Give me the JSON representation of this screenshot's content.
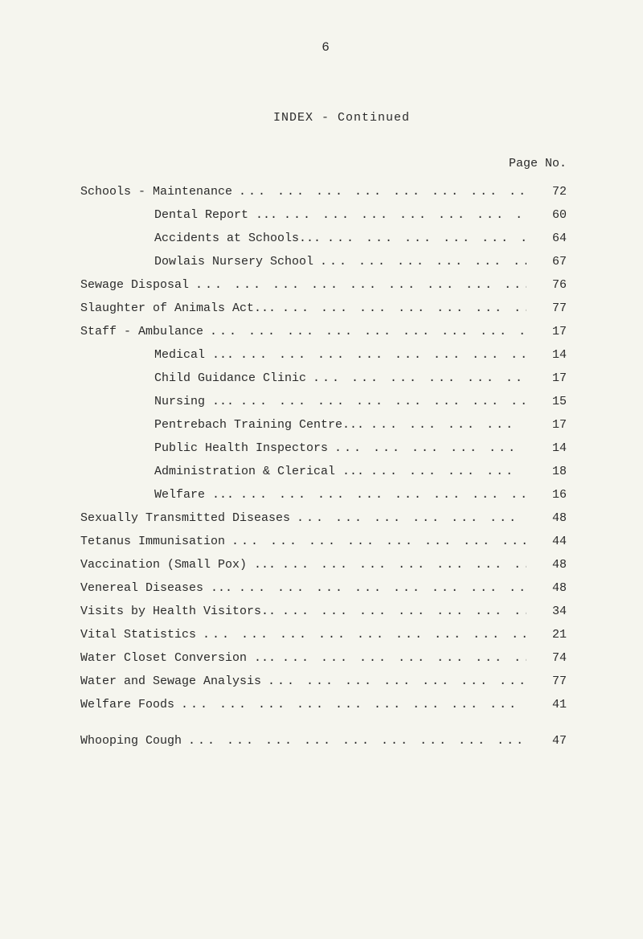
{
  "page_number_top": "6",
  "index_title": "INDEX - Continued",
  "header_label": "Page No.",
  "background_color": "#f5f5ee",
  "text_color": "#2a2a2a",
  "font_family": "Courier New",
  "entries": [
    {
      "label": "Schools - Maintenance",
      "page": "72",
      "indent": 0
    },
    {
      "label": "Dental Report ...",
      "page": "60",
      "indent": 1
    },
    {
      "label": "Accidents at Schools...",
      "page": "64",
      "indent": 1
    },
    {
      "label": "Dowlais Nursery School",
      "page": "67",
      "indent": 1
    },
    {
      "label": "Sewage Disposal",
      "page": "76",
      "indent": 0
    },
    {
      "label": "Slaughter of Animals Act...",
      "page": "77",
      "indent": 0
    },
    {
      "label": "Staff -   Ambulance",
      "page": "17",
      "indent": 0
    },
    {
      "label": "Medical ...",
      "page": "14",
      "indent": 1
    },
    {
      "label": "Child Guidance Clinic",
      "page": "17",
      "indent": 1
    },
    {
      "label": "Nursing ...",
      "page": "15",
      "indent": 1
    },
    {
      "label": "Pentrebach Training Centre...",
      "page": "17",
      "indent": 1
    },
    {
      "label": "Public Health Inspectors",
      "page": "14",
      "indent": 1
    },
    {
      "label": "Administration & Clerical ...",
      "page": "18",
      "indent": 1
    },
    {
      "label": "Welfare ...",
      "page": "16",
      "indent": 1
    },
    {
      "label": "Sexually Transmitted Diseases",
      "page": "48",
      "indent": 0
    },
    {
      "label": "Tetanus Immunisation",
      "page": "44",
      "indent": 0
    },
    {
      "label": "Vaccination (Small Pox) ...",
      "page": "48",
      "indent": 0
    },
    {
      "label": "Venereal Diseases ...",
      "page": "48",
      "indent": 0
    },
    {
      "label": "Visits by Health Visitors..",
      "page": "34",
      "indent": 0
    },
    {
      "label": "Vital Statistics",
      "page": "21",
      "indent": 0
    },
    {
      "label": "Water Closet Conversion ...",
      "page": "74",
      "indent": 0
    },
    {
      "label": "Water and Sewage Analysis",
      "page": "77",
      "indent": 0
    },
    {
      "label": "Welfare Foods",
      "page": "41",
      "indent": 0,
      "gap_after": true
    },
    {
      "label": "Whooping Cough",
      "page": "47",
      "indent": 0
    }
  ],
  "dots_pattern": "...   ...   ...   ...   ...   ...   ...   ...   ..."
}
